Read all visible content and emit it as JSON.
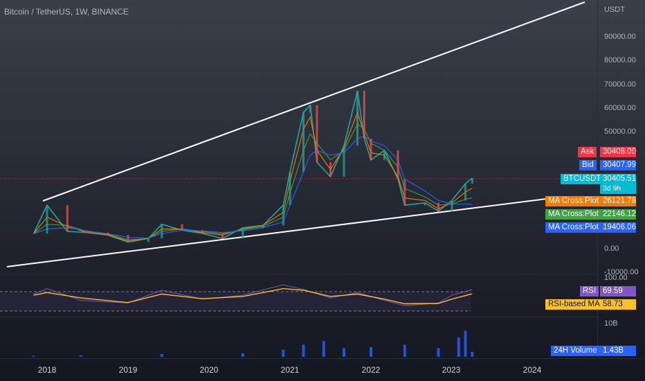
{
  "header": {
    "symbol_title": "Bitcoin / TetherUS, 1W, BINANCE"
  },
  "price_axis": {
    "currency": "USDT",
    "ticks": [
      "90000.00",
      "80000.00",
      "70000.00",
      "60000.00",
      "50000.00",
      "0.00",
      "-10000.00"
    ]
  },
  "rsi_axis": {
    "top_tick": "100.00"
  },
  "volume_axis": {
    "top_tick": "10B"
  },
  "time_axis": {
    "years": [
      "2018",
      "2019",
      "2020",
      "2021",
      "2022",
      "2023",
      "2024"
    ]
  },
  "price_tags": {
    "ask": {
      "label": "Ask",
      "value": "30408.00",
      "color": "#f23645"
    },
    "bid": {
      "label": "Bid",
      "value": "30407.99",
      "color": "#2962ff"
    },
    "last": {
      "label": "BTCUSDT",
      "value": "30405.51",
      "countdown": "3d 9h",
      "color": "#00bcd4"
    },
    "ma_fast": {
      "label": "MA Cross:Plot",
      "value": "26121.78",
      "color": "#f57c00"
    },
    "ma_mid": {
      "label": "MA Cross:Plot",
      "value": "22146.12",
      "color": "#43a047"
    },
    "ma_slow": {
      "label": "MA Cross:Plot",
      "value": "19406.06",
      "color": "#2962ff"
    }
  },
  "rsi_tags": {
    "rsi": {
      "label": "RSI",
      "value": "69.59",
      "color": "#7e57c2"
    },
    "rsi_ma": {
      "label": "RSI-based MA",
      "value": "58.73",
      "color": "#fbc02d"
    }
  },
  "volume_tags": {
    "volume": {
      "label": "24H Volume",
      "value": "1.43B",
      "color": "#2962ff"
    }
  },
  "chart_data": [
    {
      "type": "line",
      "title": "Bitcoin / TetherUS, 1W, BINANCE",
      "ylabel": "USDT",
      "ylim": [
        -10000,
        100000
      ],
      "x": [
        "2017-11",
        "2018-01",
        "2018-04",
        "2018-07",
        "2018-10",
        "2019-01",
        "2019-04",
        "2019-06",
        "2019-09",
        "2019-12",
        "2020-03",
        "2020-06",
        "2020-09",
        "2020-12",
        "2021-01",
        "2021-03",
        "2021-04",
        "2021-05",
        "2021-07",
        "2021-09",
        "2021-11",
        "2021-12",
        "2022-01",
        "2022-03",
        "2022-05",
        "2022-06",
        "2022-09",
        "2022-11",
        "2023-01",
        "2023-03",
        "2023-04"
      ],
      "series": [
        {
          "name": "BTCUSDT",
          "values": [
            7000,
            19000,
            8000,
            7500,
            6500,
            3500,
            5000,
            11000,
            8500,
            7200,
            5000,
            9500,
            10500,
            19000,
            33000,
            58000,
            61000,
            37000,
            31000,
            44000,
            67000,
            47000,
            38000,
            42000,
            30000,
            19000,
            20000,
            16500,
            21000,
            28000,
            30400
          ]
        },
        {
          "name": "MA Cross:Plot",
          "values": [
            7000,
            14000,
            10000,
            7500,
            6500,
            4000,
            5000,
            9000,
            9000,
            7500,
            6500,
            9000,
            10500,
            16000,
            29000,
            51000,
            56000,
            42000,
            34000,
            43000,
            58000,
            49000,
            41000,
            40000,
            31000,
            22000,
            21000,
            17500,
            20000,
            24500,
            26121.78
          ]
        },
        {
          "name": "MA Cross:Plot",
          "values": [
            7000,
            11000,
            10500,
            8000,
            6800,
            4500,
            5000,
            8000,
            9000,
            8000,
            7000,
            8700,
            10000,
            14000,
            24000,
            42000,
            49000,
            45000,
            38000,
            42000,
            53000,
            51000,
            45000,
            42000,
            35000,
            26000,
            22500,
            19000,
            19500,
            21500,
            22146.12
          ]
        },
        {
          "name": "MA Cross:Plot",
          "values": [
            7000,
            9000,
            9500,
            8200,
            7000,
            5500,
            5200,
            7000,
            8500,
            8200,
            7500,
            8200,
            9500,
            12000,
            19000,
            33000,
            40000,
            42000,
            40000,
            41000,
            47000,
            48000,
            46000,
            44000,
            38000,
            30000,
            25000,
            21000,
            19500,
            19400,
            19406.06
          ]
        }
      ]
    },
    {
      "type": "line",
      "ylim": [
        0,
        100
      ],
      "x": [
        "2017-11",
        "2018-01",
        "2018-06",
        "2019-01",
        "2019-06",
        "2019-12",
        "2020-06",
        "2020-12",
        "2021-03",
        "2021-07",
        "2021-11",
        "2022-03",
        "2022-06",
        "2022-11",
        "2023-01",
        "2023-04"
      ],
      "series": [
        {
          "name": "RSI",
          "values": [
            58,
            72,
            42,
            35,
            68,
            45,
            55,
            82,
            70,
            48,
            62,
            42,
            28,
            35,
            55,
            69.59
          ]
        },
        {
          "name": "RSI-based MA",
          "values": [
            55,
            62,
            48,
            36,
            58,
            46,
            52,
            72,
            68,
            52,
            58,
            45,
            33,
            34,
            45,
            58.73
          ]
        }
      ]
    },
    {
      "type": "bar",
      "ylim": [
        0,
        10
      ],
      "x": [
        "2017-11",
        "2018-06",
        "2019-06",
        "2020-06",
        "2020-12",
        "2021-03",
        "2021-06",
        "2021-09",
        "2022-01",
        "2022-06",
        "2022-11",
        "2023-02",
        "2023-03",
        "2023-04"
      ],
      "series": [
        {
          "name": "24H Volume",
          "values": [
            0.3,
            0.4,
            0.8,
            1.0,
            2.0,
            3.5,
            4.5,
            2.5,
            2.8,
            3.5,
            2.5,
            5.5,
            7.5,
            1.43
          ]
        }
      ]
    }
  ]
}
